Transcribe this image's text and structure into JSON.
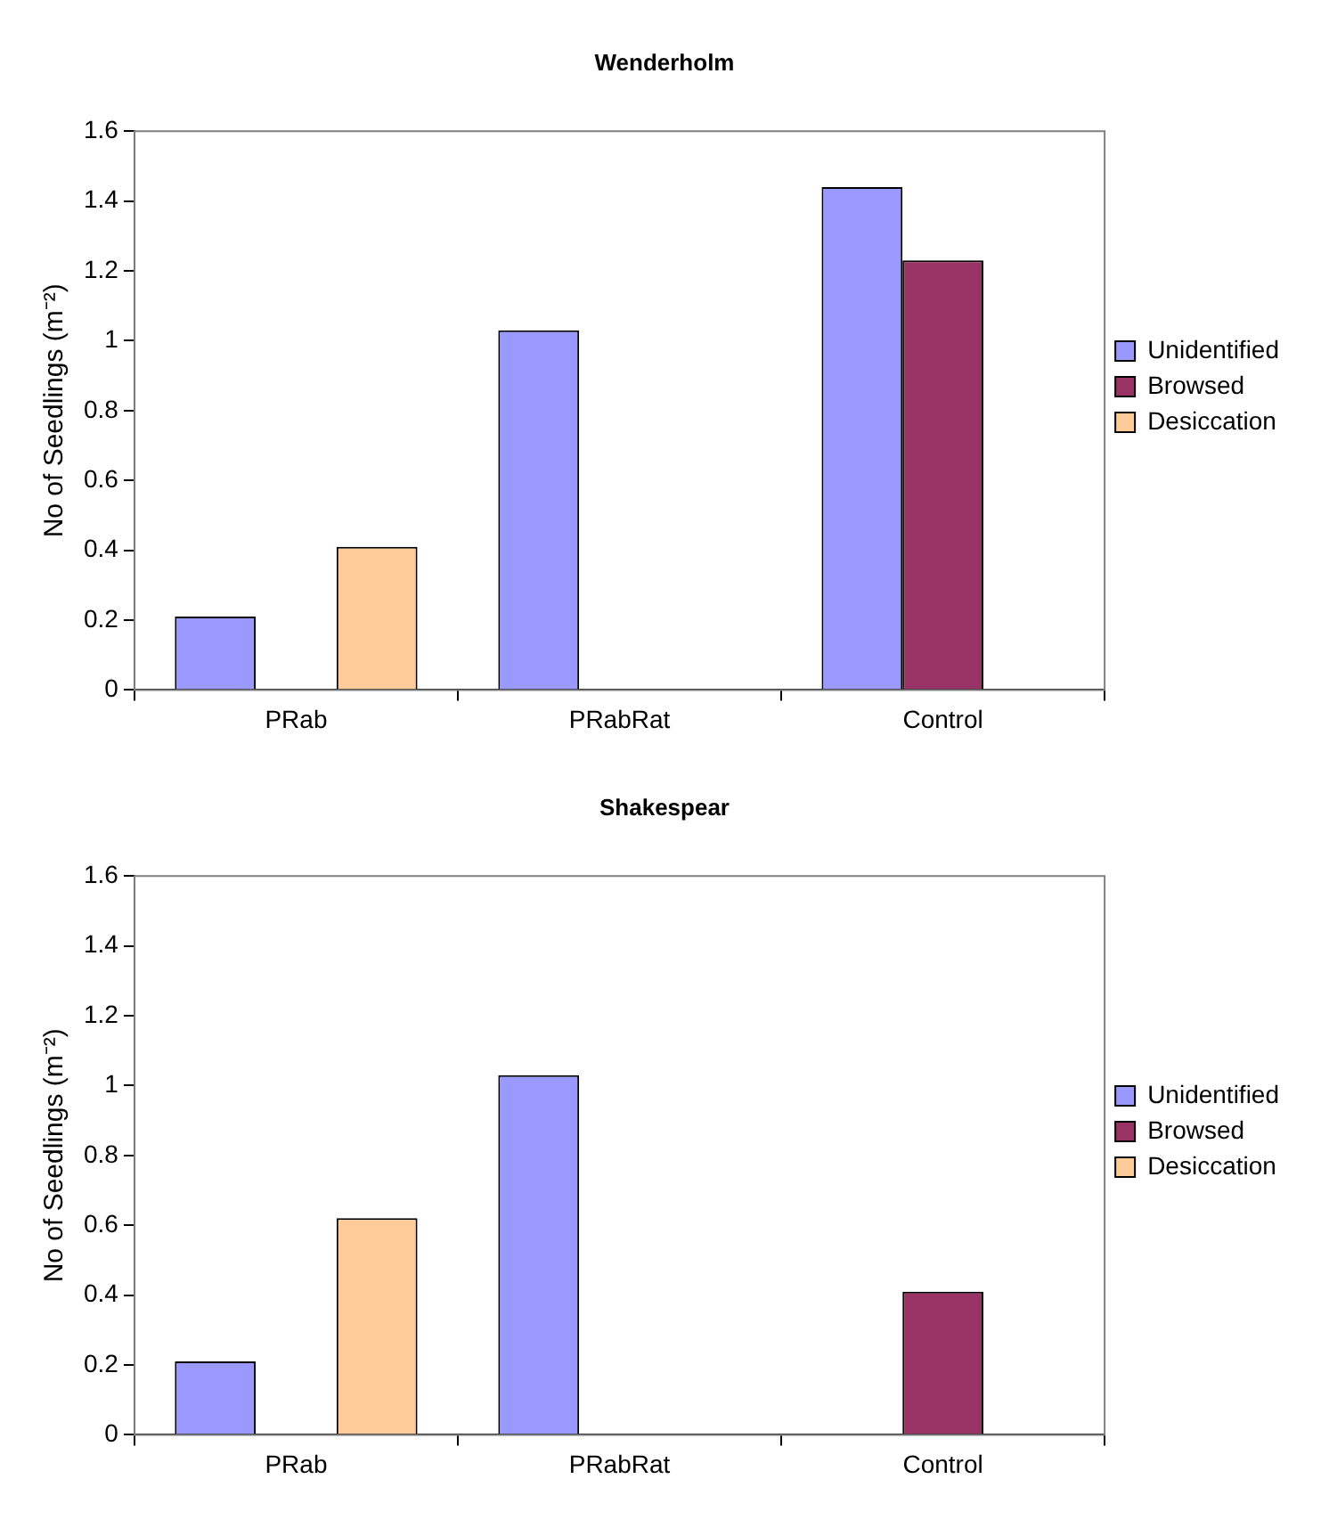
{
  "chart_data": [
    {
      "type": "bar",
      "title": "Wenderholm",
      "ylabel": "No of Seedlings (m⁻²)",
      "categories": [
        "PRab",
        "PRabRat",
        "Control"
      ],
      "series": [
        {
          "name": "Unidentified",
          "color": "#9999ff",
          "values": [
            0.21,
            1.03,
            1.44
          ]
        },
        {
          "name": "Browsed",
          "color": "#993366",
          "values": [
            null,
            null,
            1.23
          ]
        },
        {
          "name": "Desiccation",
          "color": "#ffcc99",
          "values": [
            0.41,
            null,
            null
          ]
        }
      ],
      "ylim": [
        0,
        1.6
      ],
      "yticks": [
        0,
        0.2,
        0.4,
        0.6,
        0.8,
        1,
        1.2,
        1.4,
        1.6
      ],
      "legend": "right"
    },
    {
      "type": "bar",
      "title": "Shakespear",
      "ylabel": "No of Seedlings (m⁻²)",
      "categories": [
        "PRab",
        "PRabRat",
        "Control"
      ],
      "series": [
        {
          "name": "Unidentified",
          "color": "#9999ff",
          "values": [
            0.21,
            1.03,
            null
          ]
        },
        {
          "name": "Browsed",
          "color": "#993366",
          "values": [
            null,
            null,
            0.41
          ]
        },
        {
          "name": "Desiccation",
          "color": "#ffcc99",
          "values": [
            0.62,
            null,
            null
          ]
        }
      ],
      "ylim": [
        0,
        1.6
      ],
      "yticks": [
        0,
        0.2,
        0.4,
        0.6,
        0.8,
        1,
        1.2,
        1.4,
        1.6
      ],
      "legend": "right"
    }
  ]
}
